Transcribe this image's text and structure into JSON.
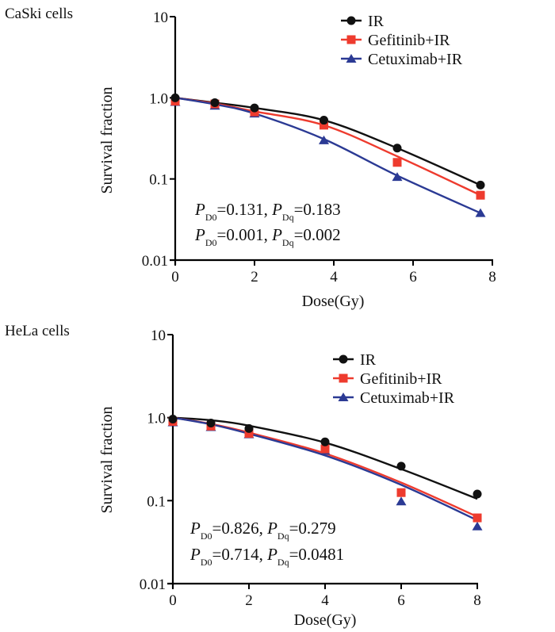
{
  "chart_data": [
    {
      "type": "line",
      "title": "CaSki cells",
      "xlabel": "Dose(Gy)",
      "ylabel": "Survival fraction",
      "yscale": "log",
      "ylim": [
        0.01,
        10
      ],
      "xlim": [
        0,
        8
      ],
      "xticks": [
        "0",
        "2",
        "4",
        "6",
        "8"
      ],
      "yticks": [
        "0.01",
        "0.1",
        "1.0",
        "10"
      ],
      "legend_position": "top-right",
      "series": [
        {
          "name": "IR",
          "color": "#111111",
          "marker": "circle",
          "x": [
            0,
            1,
            2,
            3.75,
            5.6,
            7.7
          ],
          "y": [
            1.0,
            0.87,
            0.75,
            0.53,
            0.24,
            0.084
          ],
          "fit": [
            1.0,
            0.87,
            0.75,
            0.53,
            0.24,
            0.084
          ]
        },
        {
          "name": "Gefitinib+IR",
          "color": "#ee3b2e",
          "marker": "square",
          "x": [
            0,
            1,
            2,
            3.75,
            5.6,
            7.7
          ],
          "y": [
            0.91,
            0.84,
            0.67,
            0.46,
            0.16,
            0.063
          ],
          "fit": [
            1.0,
            0.85,
            0.68,
            0.46,
            0.19,
            0.063
          ]
        },
        {
          "name": "Cetuximab+IR",
          "color": "#2b3a94",
          "marker": "triangle",
          "x": [
            0,
            1,
            2,
            3.75,
            5.6,
            7.7
          ],
          "y": [
            0.89,
            0.8,
            0.64,
            0.3,
            0.106,
            0.038
          ],
          "fit": [
            1.0,
            0.83,
            0.64,
            0.31,
            0.11,
            0.038
          ]
        }
      ],
      "annotations": [
        {
          "p_d0": "0.131",
          "p_dq": "0.183"
        },
        {
          "p_d0": "0.001",
          "p_dq": "0.002"
        }
      ]
    },
    {
      "type": "line",
      "title": "HeLa cells",
      "xlabel": "Dose(Gy)",
      "ylabel": "Survival fraction",
      "yscale": "log",
      "ylim": [
        0.01,
        10
      ],
      "xlim": [
        0,
        8
      ],
      "xticks": [
        "0",
        "2",
        "4",
        "6",
        "8"
      ],
      "yticks": [
        "0.01",
        "0.1",
        "1.0",
        "10"
      ],
      "legend_position": "top-right",
      "series": [
        {
          "name": "IR",
          "color": "#111111",
          "marker": "circle",
          "x": [
            0,
            1,
            2,
            4,
            6,
            8
          ],
          "y": [
            0.96,
            0.86,
            0.74,
            0.51,
            0.26,
            0.12
          ],
          "fit": [
            1.0,
            0.93,
            0.8,
            0.5,
            0.24,
            0.105
          ]
        },
        {
          "name": "Gefitinib+IR",
          "color": "#ee3b2e",
          "marker": "square",
          "x": [
            0,
            1,
            2,
            4,
            6,
            8
          ],
          "y": [
            0.9,
            0.79,
            0.645,
            0.42,
            0.125,
            0.062
          ],
          "fit": [
            1.0,
            0.84,
            0.66,
            0.37,
            0.165,
            0.064
          ]
        },
        {
          "name": "Cetuximab+IR",
          "color": "#2b3a94",
          "marker": "triangle",
          "x": [
            0,
            1,
            2,
            4,
            6,
            8
          ],
          "y": [
            0.88,
            0.77,
            0.63,
            0.4,
            0.098,
            0.049
          ],
          "fit": [
            1.0,
            0.83,
            0.64,
            0.35,
            0.155,
            0.058
          ]
        }
      ],
      "annotations": [
        {
          "p_d0": "0.826",
          "p_dq": "0.279"
        },
        {
          "p_d0": "0.714",
          "p_dq": "0.0481"
        }
      ]
    }
  ],
  "labels": {
    "p_symbol": "P",
    "d0_sub": "D0",
    "dq_sub": "Dq"
  }
}
